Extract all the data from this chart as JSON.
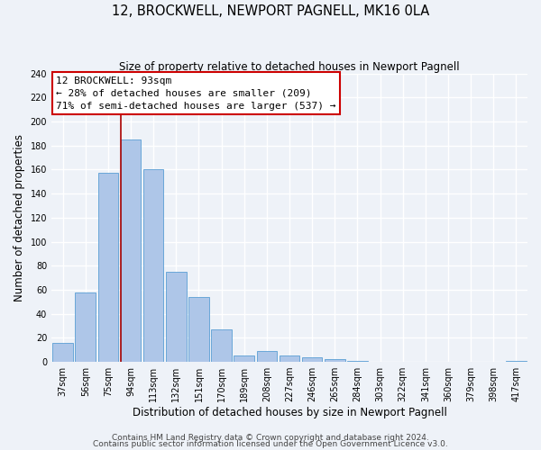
{
  "title": "12, BROCKWELL, NEWPORT PAGNELL, MK16 0LA",
  "subtitle": "Size of property relative to detached houses in Newport Pagnell",
  "xlabel": "Distribution of detached houses by size in Newport Pagnell",
  "ylabel": "Number of detached properties",
  "bar_labels": [
    "37sqm",
    "56sqm",
    "75sqm",
    "94sqm",
    "113sqm",
    "132sqm",
    "151sqm",
    "170sqm",
    "189sqm",
    "208sqm",
    "227sqm",
    "246sqm",
    "265sqm",
    "284sqm",
    "303sqm",
    "322sqm",
    "341sqm",
    "360sqm",
    "379sqm",
    "398sqm",
    "417sqm"
  ],
  "bar_values": [
    16,
    58,
    157,
    185,
    160,
    75,
    54,
    27,
    5,
    9,
    5,
    4,
    2,
    1,
    0,
    0,
    0,
    0,
    0,
    0,
    1
  ],
  "bar_color": "#aec6e8",
  "bar_edge_color": "#5a9fd4",
  "vline_x_index": 3,
  "vline_color": "#aa0000",
  "annotation_title": "12 BROCKWELL: 93sqm",
  "annotation_line1": "← 28% of detached houses are smaller (209)",
  "annotation_line2": "71% of semi-detached houses are larger (537) →",
  "annotation_box_color": "#ffffff",
  "annotation_box_edge_color": "#cc0000",
  "ylim": [
    0,
    240
  ],
  "yticks": [
    0,
    20,
    40,
    60,
    80,
    100,
    120,
    140,
    160,
    180,
    200,
    220,
    240
  ],
  "footer1": "Contains HM Land Registry data © Crown copyright and database right 2024.",
  "footer2": "Contains public sector information licensed under the Open Government Licence v3.0.",
  "background_color": "#eef2f8",
  "grid_color": "#ffffff",
  "title_fontsize": 10.5,
  "subtitle_fontsize": 8.5,
  "xlabel_fontsize": 8.5,
  "ylabel_fontsize": 8.5,
  "tick_fontsize": 7,
  "footer_fontsize": 6.5,
  "annotation_fontsize": 8
}
